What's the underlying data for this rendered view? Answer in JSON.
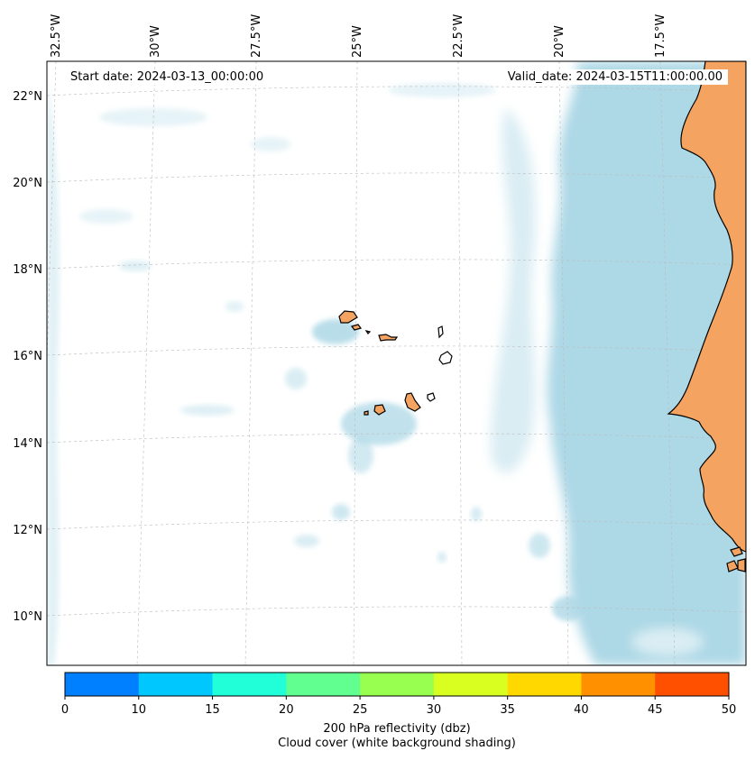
{
  "map": {
    "lon_ticks": [
      "32.5°W",
      "30°W",
      "27.5°W",
      "25°W",
      "22.5°W",
      "20°W",
      "17.5°W"
    ],
    "lat_ticks": [
      "22°N",
      "20°N",
      "18°N",
      "16°N",
      "14°N",
      "12°N",
      "10°N"
    ],
    "start_date": "Start date: 2024-03-13_00:00:00",
    "valid_date": "Valid_date: 2024-03-15T11:00:00.00",
    "colors": {
      "land": "#f4a460",
      "cloud": "#add8e6",
      "grid": "#bbbbbb"
    }
  },
  "colorbar": {
    "ticks": [
      "0",
      "10",
      "15",
      "20",
      "25",
      "30",
      "35",
      "40",
      "45",
      "50"
    ],
    "colors": [
      "#0080ff",
      "#00c8ff",
      "#20ffd8",
      "#60ff90",
      "#98ff50",
      "#d8ff20",
      "#ffd800",
      "#ff9000",
      "#ff5000"
    ],
    "label_line1": "200 hPa reflectivity (dbz)",
    "label_line2": "Cloud cover (white background shading)"
  }
}
